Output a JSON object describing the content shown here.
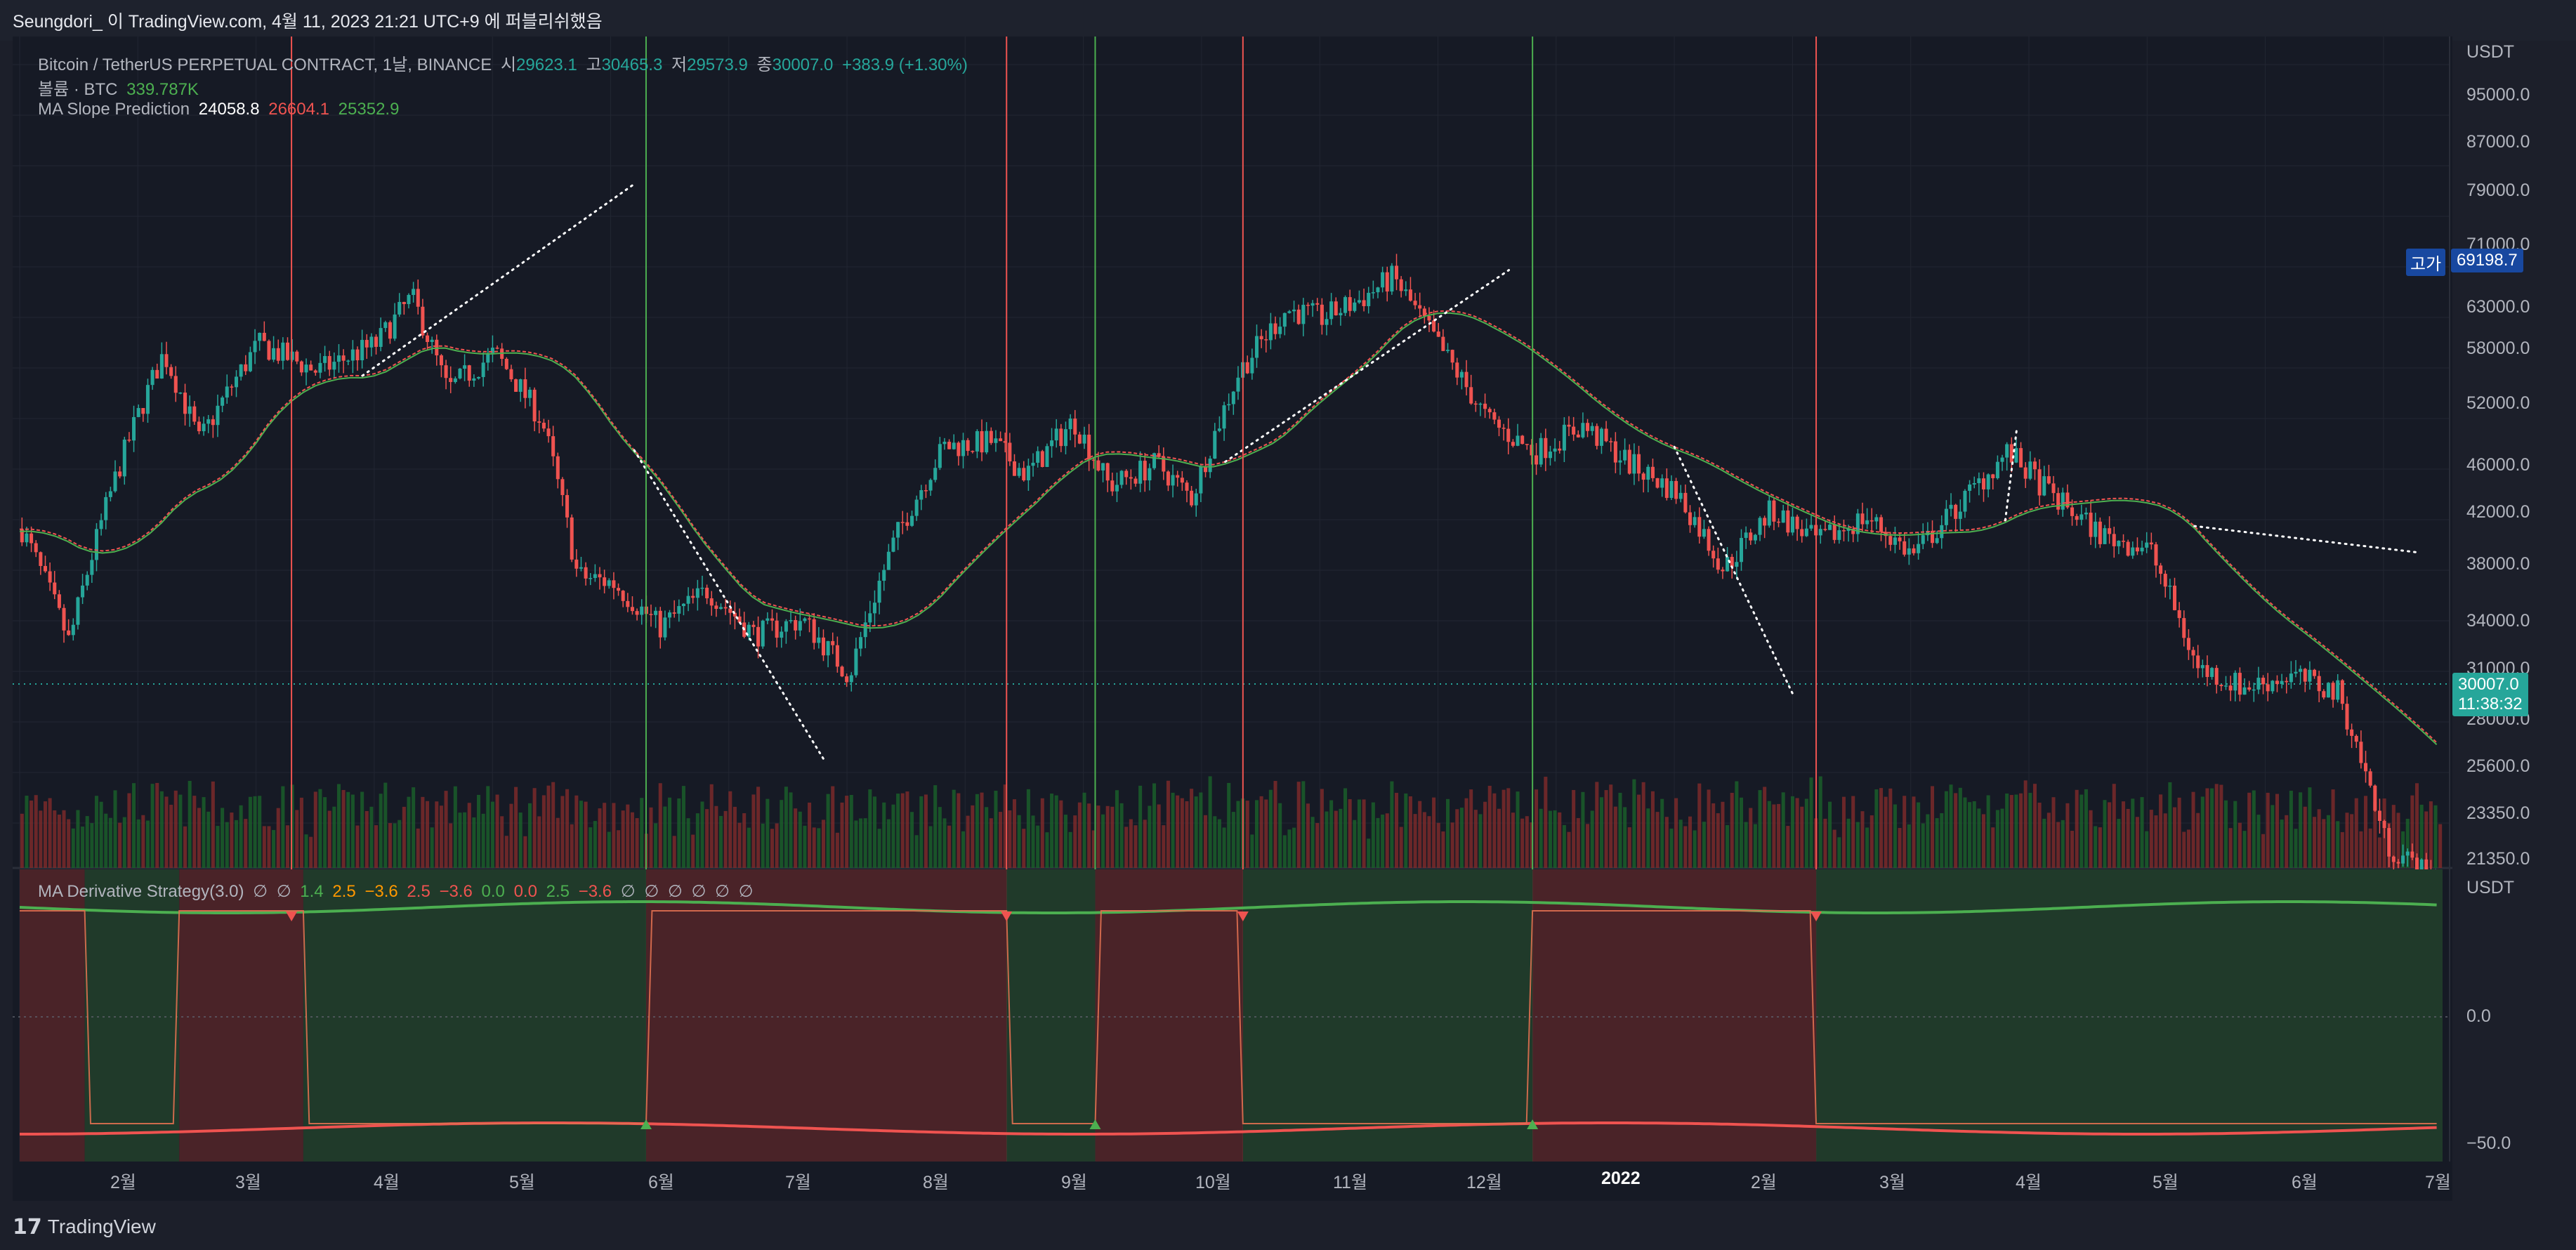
{
  "header": {
    "title": "Seungdori_ 이 TradingView.com, 4월 11, 2023 21:21 UTC+9 에 퍼블리쉬했음"
  },
  "main_legend": {
    "symbol": "Bitcoin / TetherUS PERPETUAL CONTRACT, 1날, BINANCE",
    "open_label": "시",
    "open": "29623.1",
    "high_label": "고",
    "high": "30465.3",
    "low_label": "저",
    "low": "29573.9",
    "close_label": "종",
    "close": "30007.0",
    "change": "+383.9 (+1.30%)",
    "volume_label": "볼륨 · BTC",
    "volume": "339.787K",
    "indicator_name": "MA Slope Prediction",
    "ind_v1": "24058.8",
    "ind_v2": "26604.1",
    "ind_v3": "25352.9"
  },
  "strategy_legend": {
    "name": "MA Derivative Strategy(3.0)",
    "values": [
      "∅",
      "∅",
      "1.4",
      "2.5",
      "−3.6",
      "2.5",
      "−3.6",
      "0.0",
      "0.0",
      "2.5",
      "−3.6",
      "∅",
      "∅",
      "∅",
      "∅",
      "∅",
      "∅"
    ]
  },
  "price_axis": {
    "currency": "USDT",
    "ticks": [
      "95000.0",
      "87000.0",
      "79000.0",
      "71000.0",
      "63000.0",
      "58000.0",
      "52000.0",
      "46000.0",
      "42000.0",
      "38000.0",
      "34000.0",
      "31000.0",
      "28000.0",
      "25600.0",
      "23350.0",
      "21350.0"
    ]
  },
  "tags": {
    "high_label": "고가",
    "high_value": "69198.7",
    "last_price": "30007.0",
    "countdown": "11:38:32"
  },
  "sub_axis": {
    "currency": "USDT",
    "ticks": [
      "0.0",
      "−50.0"
    ]
  },
  "time_axis": {
    "ticks": [
      "2월",
      "3월",
      "4월",
      "5월",
      "6월",
      "7월",
      "8월",
      "9월",
      "10월",
      "11월",
      "12월",
      "2022",
      "2월",
      "3월",
      "4월",
      "5월",
      "6월",
      "7월"
    ]
  },
  "footer": {
    "brand": "TradingView"
  },
  "colors": {
    "bull": "#26a69a",
    "bear": "#ef5350",
    "signal_green": "#4caf50",
    "background": "#161a25"
  },
  "chart_data": {
    "type": "candlestick",
    "title": "Bitcoin / TetherUS PERPETUAL CONTRACT, 1날, BINANCE",
    "ylabel": "USDT",
    "ylim": [
      21350,
      97000
    ],
    "x": [
      "2월",
      "3월",
      "4월",
      "5월",
      "6월",
      "7월",
      "8월",
      "9월",
      "10월",
      "11월",
      "12월",
      "2022",
      "2월",
      "3월",
      "4월",
      "5월",
      "6월",
      "7월"
    ],
    "close_trend": [
      {
        "x": 0.0,
        "y": 40500
      },
      {
        "x": 0.4,
        "y": 32500
      },
      {
        "x": 0.8,
        "y": 45000
      },
      {
        "x": 1.2,
        "y": 57000
      },
      {
        "x": 1.5,
        "y": 48000
      },
      {
        "x": 2.0,
        "y": 58000
      },
      {
        "x": 2.5,
        "y": 55000
      },
      {
        "x": 3.0,
        "y": 58000
      },
      {
        "x": 3.3,
        "y": 63500
      },
      {
        "x": 3.6,
        "y": 53000
      },
      {
        "x": 4.0,
        "y": 57000
      },
      {
        "x": 4.4,
        "y": 50000
      },
      {
        "x": 4.7,
        "y": 37000
      },
      {
        "x": 5.0,
        "y": 36500
      },
      {
        "x": 5.4,
        "y": 33500
      },
      {
        "x": 5.8,
        "y": 36000
      },
      {
        "x": 6.2,
        "y": 33000
      },
      {
        "x": 6.6,
        "y": 34000
      },
      {
        "x": 7.0,
        "y": 30500
      },
      {
        "x": 7.4,
        "y": 40000
      },
      {
        "x": 7.8,
        "y": 47500
      },
      {
        "x": 8.2,
        "y": 48000
      },
      {
        "x": 8.5,
        "y": 45000
      },
      {
        "x": 8.9,
        "y": 50000
      },
      {
        "x": 9.2,
        "y": 44000
      },
      {
        "x": 9.6,
        "y": 46000
      },
      {
        "x": 9.9,
        "y": 43000
      },
      {
        "x": 10.3,
        "y": 55000
      },
      {
        "x": 10.7,
        "y": 62000
      },
      {
        "x": 11.0,
        "y": 61000
      },
      {
        "x": 11.3,
        "y": 63000
      },
      {
        "x": 11.6,
        "y": 66000
      },
      {
        "x": 12.0,
        "y": 57500
      },
      {
        "x": 12.4,
        "y": 50000
      },
      {
        "x": 12.8,
        "y": 47000
      },
      {
        "x": 13.2,
        "y": 49500
      },
      {
        "x": 13.6,
        "y": 46000
      },
      {
        "x": 14.0,
        "y": 43500
      },
      {
        "x": 14.4,
        "y": 37500
      },
      {
        "x": 14.8,
        "y": 42000
      },
      {
        "x": 15.2,
        "y": 39500
      },
      {
        "x": 15.6,
        "y": 41500
      },
      {
        "x": 16.0,
        "y": 38500
      },
      {
        "x": 16.4,
        "y": 42500
      },
      {
        "x": 16.8,
        "y": 47000
      },
      {
        "x": 17.2,
        "y": 43000
      },
      {
        "x": 17.6,
        "y": 40000
      },
      {
        "x": 18.0,
        "y": 39000
      },
      {
        "x": 18.4,
        "y": 31000
      },
      {
        "x": 18.8,
        "y": 29800
      },
      {
        "x": 19.2,
        "y": 30500
      },
      {
        "x": 19.6,
        "y": 29500
      },
      {
        "x": 20.0,
        "y": 22000
      },
      {
        "x": 20.4,
        "y": 20500
      }
    ],
    "ma_slope_prediction": [
      24058.8,
      26604.1,
      25352.9
    ],
    "strategy_values": [
      "∅",
      "∅",
      "1.4",
      "2.5",
      "−3.6",
      "2.5",
      "−3.6",
      "0.0",
      "0.0",
      "2.5",
      "−3.6"
    ]
  }
}
